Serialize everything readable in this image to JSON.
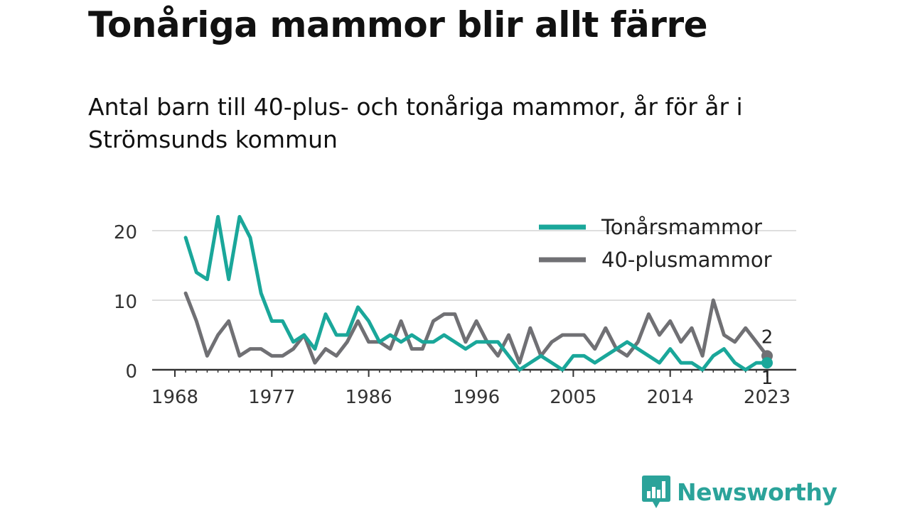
{
  "title": "Tonåriga mammor blir allt färre",
  "subtitle": "Antal barn till 40-plus- och tonåriga mammor, år för år i Strömsunds kommun",
  "brand": "Newsworthy",
  "colors": {
    "teen": "#1aa79a",
    "forty": "#707074",
    "brand": "#2ba39a"
  },
  "chart_data": {
    "type": "line",
    "x": [
      1969,
      1970,
      1971,
      1972,
      1973,
      1974,
      1975,
      1976,
      1977,
      1978,
      1979,
      1980,
      1981,
      1982,
      1983,
      1984,
      1985,
      1986,
      1987,
      1988,
      1989,
      1990,
      1991,
      1992,
      1993,
      1994,
      1995,
      1996,
      1997,
      1998,
      1999,
      2000,
      2001,
      2002,
      2003,
      2004,
      2005,
      2006,
      2007,
      2008,
      2009,
      2010,
      2011,
      2012,
      2013,
      2014,
      2015,
      2016,
      2017,
      2018,
      2019,
      2020,
      2021,
      2022,
      2023
    ],
    "series": [
      {
        "name": "Tonårsmammor",
        "color": "#1aa79a",
        "values": [
          19,
          14,
          13,
          22,
          13,
          22,
          19,
          11,
          7,
          7,
          4,
          5,
          3,
          8,
          5,
          5,
          9,
          7,
          4,
          5,
          4,
          5,
          4,
          4,
          5,
          4,
          3,
          4,
          4,
          4,
          2,
          0,
          1,
          2,
          1,
          0,
          2,
          2,
          1,
          2,
          3,
          4,
          3,
          2,
          1,
          3,
          1,
          1,
          0,
          2,
          3,
          1,
          0,
          1,
          1
        ]
      },
      {
        "name": "40-plusmammor",
        "color": "#707074",
        "values": [
          11,
          7,
          2,
          5,
          7,
          2,
          3,
          3,
          2,
          2,
          3,
          5,
          1,
          3,
          2,
          4,
          7,
          4,
          4,
          3,
          7,
          3,
          3,
          7,
          8,
          8,
          4,
          7,
          4,
          2,
          5,
          1,
          6,
          2,
          4,
          5,
          5,
          5,
          3,
          6,
          3,
          2,
          4,
          8,
          5,
          7,
          4,
          6,
          2,
          10,
          5,
          4,
          6,
          4,
          2
        ]
      }
    ],
    "xticks": [
      "1968",
      "1977",
      "1986",
      "1996",
      "2005",
      "2014",
      "2023"
    ],
    "yticks": [
      "0",
      "10",
      "20"
    ],
    "ylim": [
      0,
      23
    ],
    "end_labels": [
      "1",
      "2"
    ],
    "legend": "top-right",
    "grid": true
  }
}
